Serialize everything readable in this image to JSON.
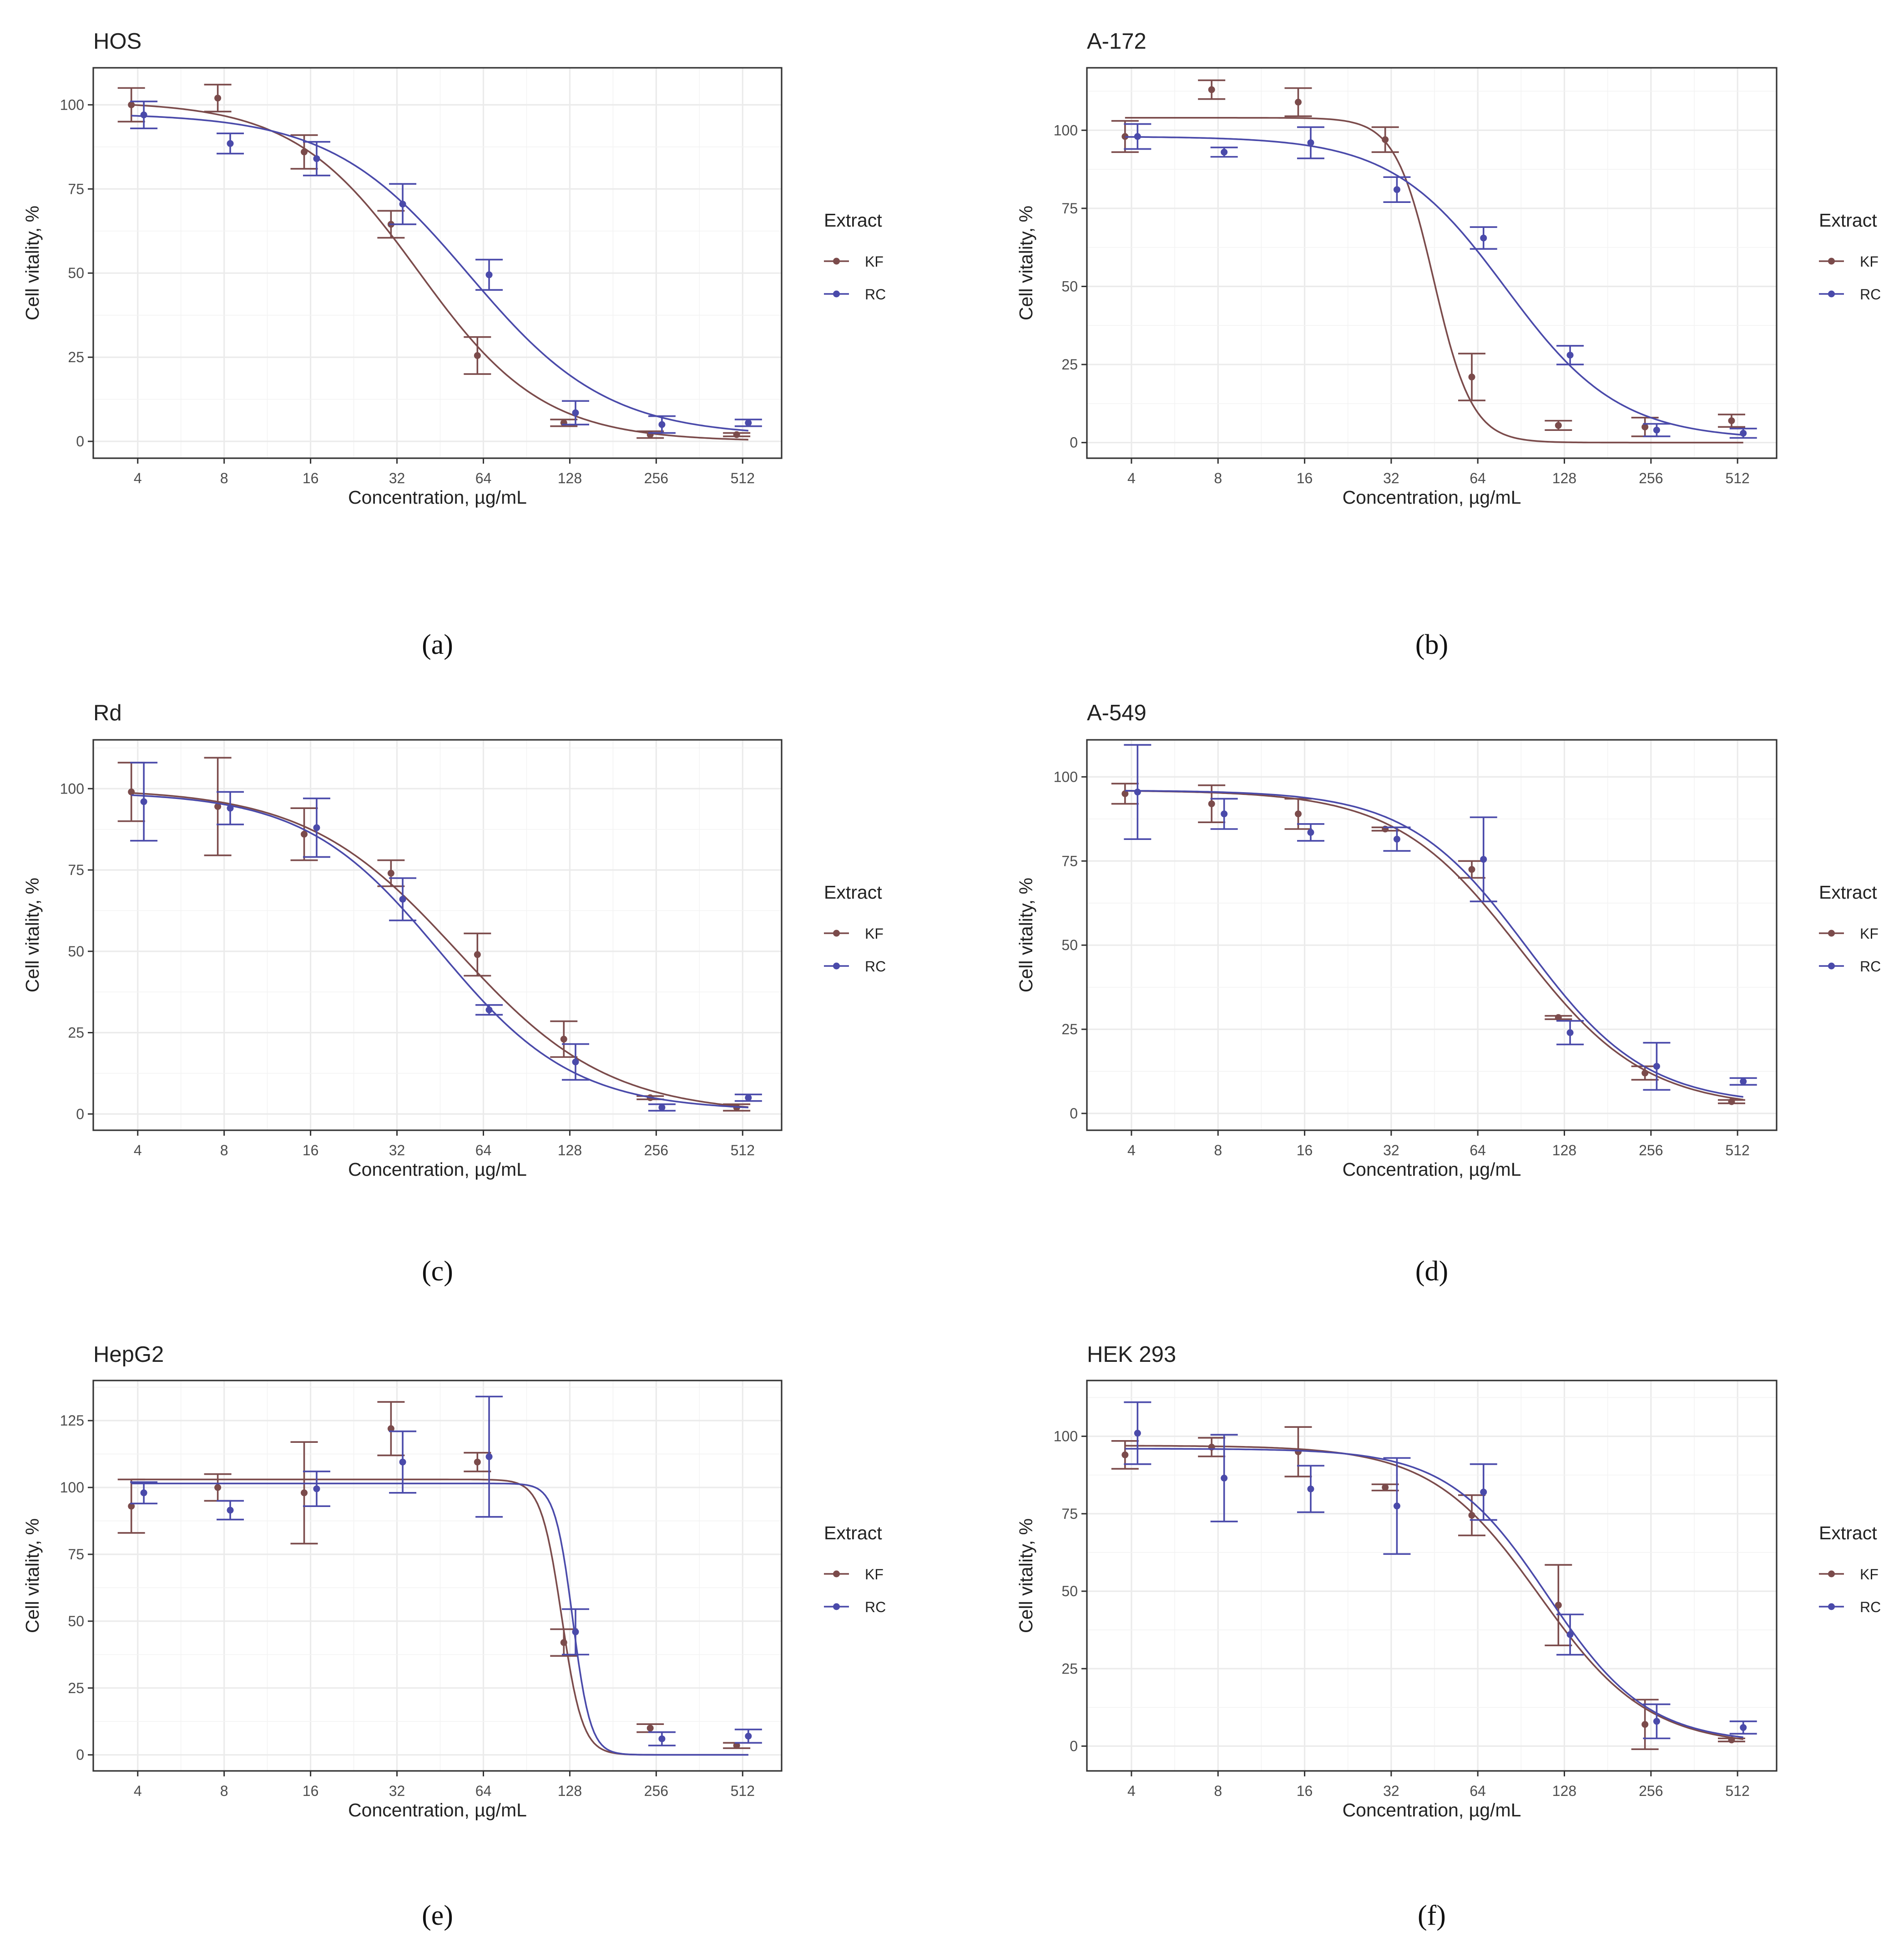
{
  "x_axis": {
    "label": "Concentration, µg/mL",
    "scale": "log2",
    "ticks": [
      4,
      8,
      16,
      32,
      64,
      128,
      256,
      512
    ],
    "range": [
      2.8,
      700
    ]
  },
  "y_axis": {
    "label": "Cell vitality, %"
  },
  "legend": {
    "title": "Extract",
    "entries": [
      {
        "key": "KF",
        "label": "KF",
        "color": "#7b4b4b"
      },
      {
        "key": "RC",
        "label": "RC",
        "color": "#4a4aaa"
      }
    ],
    "placement": "right"
  },
  "colors": {
    "KF": "#7b4b4b",
    "RC": "#4a4aaa",
    "grid": "#ebebeb",
    "frame": "#333333"
  },
  "chart_data": [
    {
      "panel": "(a)",
      "title": "HOS",
      "type": "line",
      "ylim": [
        -5,
        111
      ],
      "yticks": [
        0,
        25,
        50,
        75,
        100
      ],
      "series": [
        {
          "name": "KF",
          "points": [
            {
              "x": 3.8,
              "y": 100,
              "e": 5
            },
            {
              "x": 7.6,
              "y": 102,
              "e": 4
            },
            {
              "x": 15.2,
              "y": 86,
              "e": 5
            },
            {
              "x": 30.5,
              "y": 64.5,
              "e": 4
            },
            {
              "x": 61,
              "y": 25.5,
              "e": 5.5
            },
            {
              "x": 122,
              "y": 5.5,
              "e": 1
            },
            {
              "x": 244,
              "y": 2,
              "e": 1
            },
            {
              "x": 488,
              "y": 2,
              "e": 0.5
            }
          ],
          "fit": {
            "top": 101,
            "bottom": 0,
            "ec50": 38,
            "hill": 2.0
          }
        },
        {
          "name": "RC",
          "points": [
            {
              "x": 4.2,
              "y": 97,
              "e": 4
            },
            {
              "x": 8.4,
              "y": 88.5,
              "e": 3
            },
            {
              "x": 16.8,
              "y": 84,
              "e": 5
            },
            {
              "x": 33.5,
              "y": 70.5,
              "e": 6
            },
            {
              "x": 67,
              "y": 49.5,
              "e": 4.5
            },
            {
              "x": 134,
              "y": 8.5,
              "e": 3.5
            },
            {
              "x": 268,
              "y": 5,
              "e": 2.5
            },
            {
              "x": 536,
              "y": 5.5,
              "e": 1
            }
          ],
          "fit": {
            "top": 97.5,
            "bottom": 1.5,
            "ec50": 57,
            "hill": 1.8
          }
        }
      ]
    },
    {
      "panel": "(b)",
      "title": "A-172",
      "type": "line",
      "ylim": [
        -5,
        120
      ],
      "yticks": [
        0,
        25,
        50,
        75,
        100
      ],
      "series": [
        {
          "name": "KF",
          "points": [
            {
              "x": 3.8,
              "y": 98,
              "e": 5
            },
            {
              "x": 7.6,
              "y": 113,
              "e": 3
            },
            {
              "x": 15.2,
              "y": 109,
              "e": 4.5
            },
            {
              "x": 30.5,
              "y": 97,
              "e": 4
            },
            {
              "x": 61,
              "y": 21,
              "e": 7.5
            },
            {
              "x": 122,
              "y": 5.5,
              "e": 1.5
            },
            {
              "x": 244,
              "y": 5,
              "e": 3
            },
            {
              "x": 488,
              "y": 7,
              "e": 2
            }
          ],
          "fit": {
            "top": 104,
            "bottom": 0,
            "ec50": 45,
            "hill": 6.5
          }
        },
        {
          "name": "RC",
          "points": [
            {
              "x": 4.2,
              "y": 98,
              "e": 4
            },
            {
              "x": 8.4,
              "y": 93,
              "e": 1.5
            },
            {
              "x": 16.8,
              "y": 96,
              "e": 5
            },
            {
              "x": 33.5,
              "y": 81,
              "e": 4
            },
            {
              "x": 67,
              "y": 65.5,
              "e": 3.5
            },
            {
              "x": 134,
              "y": 28,
              "e": 3
            },
            {
              "x": 268,
              "y": 4,
              "e": 2
            },
            {
              "x": 536,
              "y": 3,
              "e": 1.5
            }
          ],
          "fit": {
            "top": 98,
            "bottom": 1,
            "ec50": 80,
            "hill": 2.2
          }
        }
      ]
    },
    {
      "panel": "(c)",
      "title": "Rd",
      "type": "line",
      "ylim": [
        -5,
        115
      ],
      "yticks": [
        0,
        25,
        50,
        75,
        100
      ],
      "series": [
        {
          "name": "KF",
          "points": [
            {
              "x": 3.8,
              "y": 99,
              "e": 9
            },
            {
              "x": 7.6,
              "y": 94.5,
              "e": 15
            },
            {
              "x": 15.2,
              "y": 86,
              "e": 8
            },
            {
              "x": 30.5,
              "y": 74,
              "e": 4
            },
            {
              "x": 61,
              "y": 49,
              "e": 6.5
            },
            {
              "x": 122,
              "y": 23,
              "e": 5.5
            },
            {
              "x": 244,
              "y": 5,
              "e": 0.5
            },
            {
              "x": 488,
              "y": 2,
              "e": 1
            }
          ],
          "fit": {
            "top": 100,
            "bottom": 0,
            "ec50": 52,
            "hill": 1.65
          }
        },
        {
          "name": "RC",
          "points": [
            {
              "x": 4.2,
              "y": 96,
              "e": 12
            },
            {
              "x": 8.4,
              "y": 94,
              "e": 5
            },
            {
              "x": 16.8,
              "y": 88,
              "e": 9
            },
            {
              "x": 33.5,
              "y": 66,
              "e": 6.5
            },
            {
              "x": 67,
              "y": 32,
              "e": 1.5
            },
            {
              "x": 134,
              "y": 16,
              "e": 5.5
            },
            {
              "x": 268,
              "y": 2,
              "e": 1
            },
            {
              "x": 536,
              "y": 5,
              "e": 1
            }
          ],
          "fit": {
            "top": 99,
            "bottom": 1,
            "ec50": 45,
            "hill": 1.85
          }
        }
      ]
    },
    {
      "panel": "(d)",
      "title": "A-549",
      "type": "line",
      "ylim": [
        -5,
        111
      ],
      "yticks": [
        0,
        25,
        50,
        75,
        100
      ],
      "series": [
        {
          "name": "KF",
          "points": [
            {
              "x": 3.8,
              "y": 95,
              "e": 3
            },
            {
              "x": 7.6,
              "y": 92,
              "e": 5.5
            },
            {
              "x": 15.2,
              "y": 89,
              "e": 4.5
            },
            {
              "x": 30.5,
              "y": 84.5,
              "e": 0.5
            },
            {
              "x": 61,
              "y": 72.5,
              "e": 2.5
            },
            {
              "x": 122,
              "y": 28.5,
              "e": 0.5
            },
            {
              "x": 244,
              "y": 12,
              "e": 2
            },
            {
              "x": 488,
              "y": 3.5,
              "e": 0.5
            }
          ],
          "fit": {
            "top": 96,
            "bottom": 1.5,
            "ec50": 90,
            "hill": 2.0
          }
        },
        {
          "name": "RC",
          "points": [
            {
              "x": 4.2,
              "y": 95.5,
              "e": 14
            },
            {
              "x": 8.4,
              "y": 89,
              "e": 4.5
            },
            {
              "x": 16.8,
              "y": 83.5,
              "e": 2.5
            },
            {
              "x": 33.5,
              "y": 81.5,
              "e": 3.5
            },
            {
              "x": 67,
              "y": 75.5,
              "e": 12.5
            },
            {
              "x": 134,
              "y": 24,
              "e": 3.5
            },
            {
              "x": 268,
              "y": 14,
              "e": 7
            },
            {
              "x": 536,
              "y": 9.5,
              "e": 1
            }
          ],
          "fit": {
            "top": 96,
            "bottom": 2.5,
            "ec50": 95,
            "hill": 2.1
          }
        }
      ]
    },
    {
      "panel": "(e)",
      "title": "HepG2",
      "type": "line",
      "ylim": [
        -6,
        140
      ],
      "yticks": [
        0,
        25,
        50,
        75,
        100,
        125
      ],
      "series": [
        {
          "name": "KF",
          "points": [
            {
              "x": 3.8,
              "y": 93,
              "e": 10
            },
            {
              "x": 7.6,
              "y": 100,
              "e": 5
            },
            {
              "x": 15.2,
              "y": 98,
              "e": 19
            },
            {
              "x": 30.5,
              "y": 122,
              "e": 10
            },
            {
              "x": 61,
              "y": 109.5,
              "e": 3.5
            },
            {
              "x": 122,
              "y": 42,
              "e": 5
            },
            {
              "x": 244,
              "y": 10,
              "e": 1.5
            },
            {
              "x": 488,
              "y": 3.5,
              "e": 1
            }
          ],
          "fit": {
            "top": 103,
            "bottom": 0,
            "ec50": 120,
            "hill": 12
          }
        },
        {
          "name": "RC",
          "points": [
            {
              "x": 4.2,
              "y": 98,
              "e": 4
            },
            {
              "x": 8.4,
              "y": 91.5,
              "e": 3.5
            },
            {
              "x": 16.8,
              "y": 99.5,
              "e": 6.5
            },
            {
              "x": 33.5,
              "y": 109.5,
              "e": 11.5
            },
            {
              "x": 67,
              "y": 111.5,
              "e": 22.5
            },
            {
              "x": 134,
              "y": 46,
              "e": 8.5
            },
            {
              "x": 268,
              "y": 6,
              "e": 2.5
            },
            {
              "x": 536,
              "y": 7,
              "e": 2.5
            }
          ],
          "fit": {
            "top": 101.5,
            "bottom": 0,
            "ec50": 131,
            "hill": 14
          }
        }
      ]
    },
    {
      "panel": "(f)",
      "title": "HEK 293",
      "type": "line",
      "ylim": [
        -8,
        118
      ],
      "yticks": [
        0,
        25,
        50,
        75,
        100
      ],
      "series": [
        {
          "name": "KF",
          "points": [
            {
              "x": 3.8,
              "y": 94,
              "e": 4.5
            },
            {
              "x": 7.6,
              "y": 96.5,
              "e": 3
            },
            {
              "x": 15.2,
              "y": 95,
              "e": 8
            },
            {
              "x": 30.5,
              "y": 83.5,
              "e": 1
            },
            {
              "x": 61,
              "y": 74.5,
              "e": 6.5
            },
            {
              "x": 122,
              "y": 45.5,
              "e": 13
            },
            {
              "x": 244,
              "y": 7,
              "e": 8
            },
            {
              "x": 488,
              "y": 2,
              "e": 0.5
            }
          ],
          "fit": {
            "top": 97,
            "bottom": 0,
            "ec50": 105,
            "hill": 2.3
          }
        },
        {
          "name": "RC",
          "points": [
            {
              "x": 4.2,
              "y": 101,
              "e": 10
            },
            {
              "x": 8.4,
              "y": 86.5,
              "e": 14
            },
            {
              "x": 16.8,
              "y": 83,
              "e": 7.5
            },
            {
              "x": 33.5,
              "y": 77.5,
              "e": 15.5
            },
            {
              "x": 67,
              "y": 82,
              "e": 9
            },
            {
              "x": 134,
              "y": 36,
              "e": 6.5
            },
            {
              "x": 268,
              "y": 8,
              "e": 5.5
            },
            {
              "x": 536,
              "y": 6,
              "e": 2
            }
          ],
          "fit": {
            "top": 96,
            "bottom": 1,
            "ec50": 112,
            "hill": 2.5
          }
        }
      ]
    }
  ]
}
